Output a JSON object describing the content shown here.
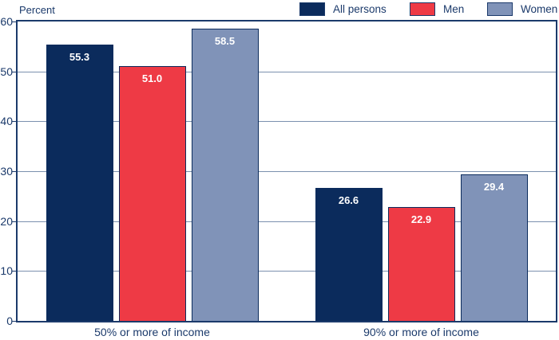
{
  "chart_data": {
    "type": "bar",
    "title": "",
    "ylabel": "Percent",
    "ylim": [
      0,
      60
    ],
    "yticks": [
      0,
      10,
      20,
      30,
      40,
      50,
      60
    ],
    "grid": "horizontal",
    "legend_position": "top-right",
    "categories": [
      "50% or more of income",
      "90% or more of income"
    ],
    "series": [
      {
        "name": "All persons",
        "color": "#0b2b5c",
        "values": [
          55.3,
          26.6
        ]
      },
      {
        "name": "Men",
        "color": "#ee3a45",
        "values": [
          51.0,
          22.9
        ]
      },
      {
        "name": "Women",
        "color": "#8093b8",
        "values": [
          58.5,
          29.4
        ]
      }
    ]
  },
  "colors": {
    "axis": "#1b3a6b",
    "grid": "#7b90ae",
    "text": "#1b3a6b",
    "value_label": "#ffffff",
    "bar_border": "#0b2b5c",
    "background": "#ffffff"
  }
}
